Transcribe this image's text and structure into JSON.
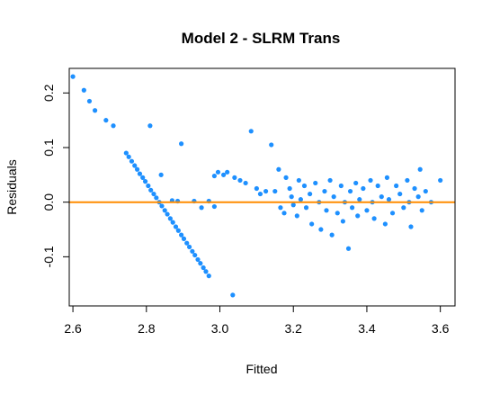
{
  "chart_data": {
    "type": "scatter",
    "title": "Model 2 - SLRM Trans",
    "xlabel": "Fitted",
    "ylabel": "Residuals",
    "xlim": [
      2.59,
      3.64
    ],
    "ylim": [
      -0.19,
      0.245
    ],
    "xticks": [
      2.6,
      2.8,
      3.0,
      3.2,
      3.4,
      3.6
    ],
    "xtick_labels": [
      "2.6",
      "2.8",
      "3.0",
      "3.2",
      "3.4",
      "3.6"
    ],
    "yticks": [
      -0.1,
      0.0,
      0.1,
      0.2
    ],
    "ytick_labels": [
      "-0.1",
      "0.0",
      "0.1",
      "0.2"
    ],
    "point_color": "#1E90FF",
    "reference_line": {
      "y": 0.0,
      "color": "#FF8C00"
    },
    "grid": false,
    "points": [
      [
        2.6,
        0.23
      ],
      [
        2.63,
        0.205
      ],
      [
        2.645,
        0.185
      ],
      [
        2.66,
        0.168
      ],
      [
        2.69,
        0.15
      ],
      [
        2.71,
        0.14
      ],
      [
        2.745,
        0.09
      ],
      [
        2.752,
        0.083
      ],
      [
        2.76,
        0.075
      ],
      [
        2.768,
        0.067
      ],
      [
        2.775,
        0.06
      ],
      [
        2.782,
        0.052
      ],
      [
        2.79,
        0.045
      ],
      [
        2.797,
        0.038
      ],
      [
        2.805,
        0.03
      ],
      [
        2.812,
        0.022
      ],
      [
        2.82,
        0.015
      ],
      [
        2.827,
        0.008
      ],
      [
        2.835,
        0.0
      ],
      [
        2.842,
        -0.007
      ],
      [
        2.85,
        -0.015
      ],
      [
        2.857,
        -0.022
      ],
      [
        2.865,
        -0.03
      ],
      [
        2.872,
        -0.037
      ],
      [
        2.88,
        -0.045
      ],
      [
        2.887,
        -0.052
      ],
      [
        2.895,
        -0.06
      ],
      [
        2.902,
        -0.067
      ],
      [
        2.91,
        -0.075
      ],
      [
        2.917,
        -0.082
      ],
      [
        2.925,
        -0.09
      ],
      [
        2.932,
        -0.097
      ],
      [
        2.94,
        -0.105
      ],
      [
        2.947,
        -0.112
      ],
      [
        2.955,
        -0.12
      ],
      [
        2.962,
        -0.127
      ],
      [
        2.97,
        -0.135
      ],
      [
        2.81,
        0.14
      ],
      [
        2.84,
        0.05
      ],
      [
        2.895,
        0.107
      ],
      [
        2.87,
        0.003
      ],
      [
        2.885,
        0.002
      ],
      [
        2.93,
        0.002
      ],
      [
        2.97,
        0.002
      ],
      [
        2.95,
        -0.01
      ],
      [
        2.985,
        0.048
      ],
      [
        2.985,
        -0.008
      ],
      [
        3.035,
        -0.17
      ],
      [
        2.995,
        0.055
      ],
      [
        3.01,
        0.05
      ],
      [
        3.02,
        0.055
      ],
      [
        3.04,
        0.045
      ],
      [
        3.055,
        0.04
      ],
      [
        3.07,
        0.035
      ],
      [
        3.085,
        0.13
      ],
      [
        3.1,
        0.025
      ],
      [
        3.11,
        0.015
      ],
      [
        3.125,
        0.02
      ],
      [
        3.14,
        0.105
      ],
      [
        3.15,
        0.02
      ],
      [
        3.16,
        0.06
      ],
      [
        3.165,
        -0.01
      ],
      [
        3.175,
        -0.02
      ],
      [
        3.18,
        0.045
      ],
      [
        3.19,
        0.025
      ],
      [
        3.195,
        0.01
      ],
      [
        3.2,
        -0.005
      ],
      [
        3.21,
        -0.025
      ],
      [
        3.215,
        0.04
      ],
      [
        3.22,
        0.005
      ],
      [
        3.23,
        0.03
      ],
      [
        3.235,
        -0.01
      ],
      [
        3.245,
        0.015
      ],
      [
        3.25,
        -0.04
      ],
      [
        3.26,
        0.035
      ],
      [
        3.27,
        0.0
      ],
      [
        3.275,
        -0.05
      ],
      [
        3.285,
        0.02
      ],
      [
        3.29,
        -0.015
      ],
      [
        3.3,
        0.04
      ],
      [
        3.305,
        -0.06
      ],
      [
        3.31,
        0.01
      ],
      [
        3.32,
        -0.02
      ],
      [
        3.33,
        0.03
      ],
      [
        3.335,
        -0.035
      ],
      [
        3.34,
        0.0
      ],
      [
        3.35,
        -0.085
      ],
      [
        3.355,
        0.02
      ],
      [
        3.36,
        -0.01
      ],
      [
        3.37,
        0.035
      ],
      [
        3.375,
        -0.025
      ],
      [
        3.38,
        0.005
      ],
      [
        3.39,
        0.025
      ],
      [
        3.4,
        -0.015
      ],
      [
        3.41,
        0.04
      ],
      [
        3.415,
        0.0
      ],
      [
        3.42,
        -0.03
      ],
      [
        3.43,
        0.03
      ],
      [
        3.44,
        0.01
      ],
      [
        3.45,
        -0.04
      ],
      [
        3.455,
        0.045
      ],
      [
        3.46,
        0.005
      ],
      [
        3.47,
        -0.02
      ],
      [
        3.48,
        0.03
      ],
      [
        3.49,
        0.015
      ],
      [
        3.5,
        -0.01
      ],
      [
        3.51,
        0.04
      ],
      [
        3.515,
        0.0
      ],
      [
        3.52,
        -0.045
      ],
      [
        3.53,
        0.025
      ],
      [
        3.54,
        0.01
      ],
      [
        3.545,
        0.06
      ],
      [
        3.55,
        -0.015
      ],
      [
        3.56,
        0.02
      ],
      [
        3.575,
        0.0
      ],
      [
        3.6,
        0.04
      ]
    ]
  }
}
